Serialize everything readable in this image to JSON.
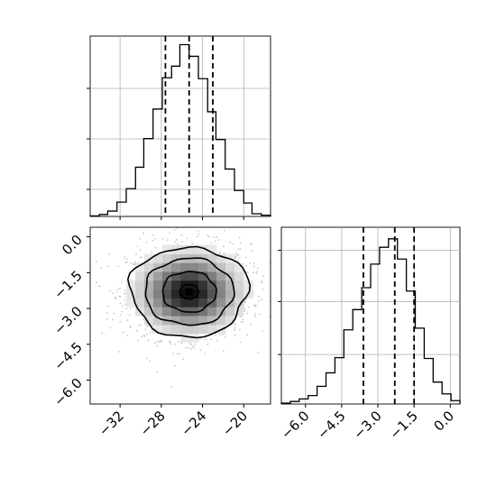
{
  "chart_data": {
    "type": "corner",
    "parameters": [
      {
        "ticks": [
          -32,
          -28,
          -24,
          -20
        ],
        "tick_labels": [
          "−32",
          "−28",
          "−24",
          "−20"
        ],
        "range": [
          -34.9,
          -17.4
        ],
        "quantiles": [
          -27.6,
          -25.3,
          -23.0
        ],
        "histogram": {
          "bin_edges": [
            -34.9,
            -34.0,
            -33.2,
            -32.3,
            -31.4,
            -30.5,
            -29.7,
            -28.8,
            -27.9,
            -27.0,
            -26.2,
            -25.3,
            -24.4,
            -23.5,
            -22.7,
            -21.8,
            -20.9,
            -20.0,
            -19.2,
            -18.3,
            -17.4
          ],
          "counts": [
            0.3,
            1.1,
            3.0,
            8.0,
            15.5,
            27.5,
            43.5,
            60.0,
            77.5,
            84.0,
            96.0,
            89.5,
            77.0,
            58.5,
            43.0,
            26.5,
            14.5,
            7.5,
            1.5,
            0.7
          ]
        }
      },
      {
        "ticks": [
          -6.0,
          -4.5,
          -3.0,
          -1.5,
          0.0
        ],
        "tick_labels": [
          "−6.0",
          "−4.5",
          "−3.0",
          "−1.5",
          "0.0"
        ],
        "range": [
          -7.0,
          0.4
        ],
        "quantiles": [
          -3.6,
          -2.3,
          -1.5
        ],
        "histogram": {
          "bin_edges": [
            -7.0,
            -6.63,
            -6.26,
            -5.89,
            -5.52,
            -5.15,
            -4.78,
            -4.41,
            -4.04,
            -3.67,
            -3.3,
            -2.93,
            -2.56,
            -2.19,
            -1.82,
            -1.45,
            -1.08,
            -0.71,
            -0.34,
            0.03,
            0.4
          ],
          "counts": [
            0.5,
            1.5,
            3.0,
            5.0,
            10.5,
            18.5,
            27.5,
            44.0,
            56.0,
            69.0,
            83.0,
            93.0,
            98.0,
            86.0,
            67.0,
            45.0,
            27.0,
            13.0,
            6.0,
            2.0
          ]
        }
      }
    ],
    "joint": {
      "center": [
        -25.3,
        -2.3
      ],
      "contour_levels": [
        {
          "rx": 5.7,
          "ry": 1.88
        },
        {
          "rx": 4.3,
          "ry": 1.4
        },
        {
          "rx": 2.6,
          "ry": 0.85
        },
        {
          "rx": 0.9,
          "ry": 0.3
        }
      ]
    },
    "xlabel": "",
    "ylabel": "",
    "grid": true
  }
}
